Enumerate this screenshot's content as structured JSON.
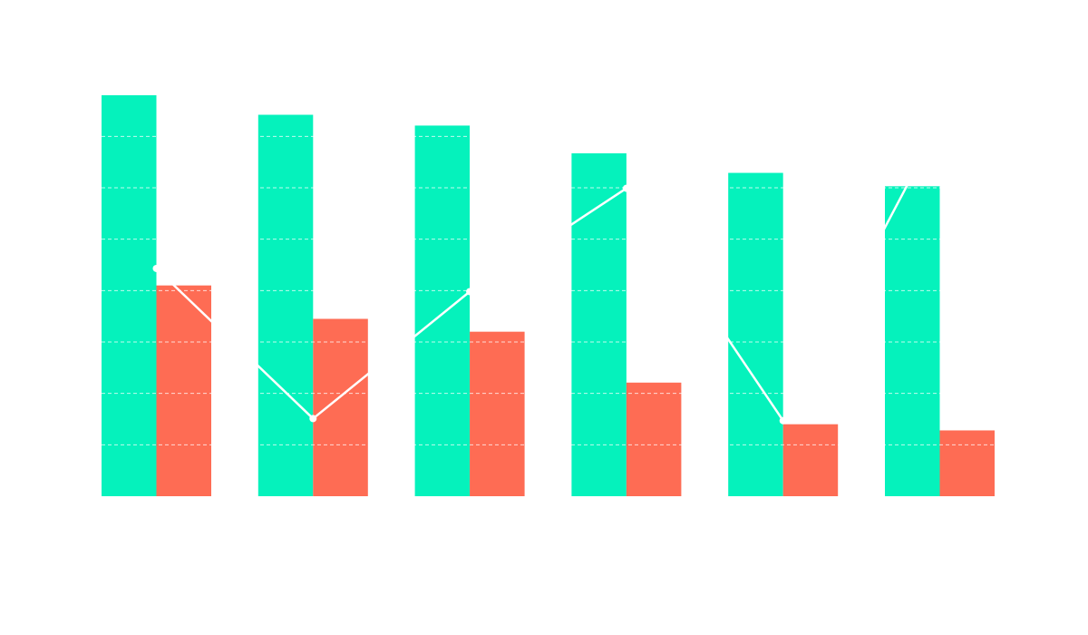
{
  "chart_data": {
    "type": "bar",
    "categories": [
      "",
      "",
      "",
      "",
      "",
      ""
    ],
    "series": [
      {
        "type": "bar",
        "color": "#05F2BC",
        "values": [
          78,
          74.2,
          72.1,
          66.7,
          62.9,
          60.3
        ]
      },
      {
        "type": "bar",
        "color": "#FE6C54",
        "values": [
          41,
          34.5,
          32,
          22.1,
          14,
          12.8
        ]
      },
      {
        "type": "line",
        "color": "#ffffff",
        "values": [
          44.3,
          15.1,
          39.8,
          59.9,
          14.7,
          72.5
        ]
      }
    ],
    "ylim": [
      0,
      78
    ],
    "gridlines": [
      10,
      20,
      30,
      40,
      50,
      60,
      70
    ],
    "grid": true,
    "legend": false,
    "colors": {
      "background": "#ffffff",
      "grid": "#ffffff"
    }
  }
}
